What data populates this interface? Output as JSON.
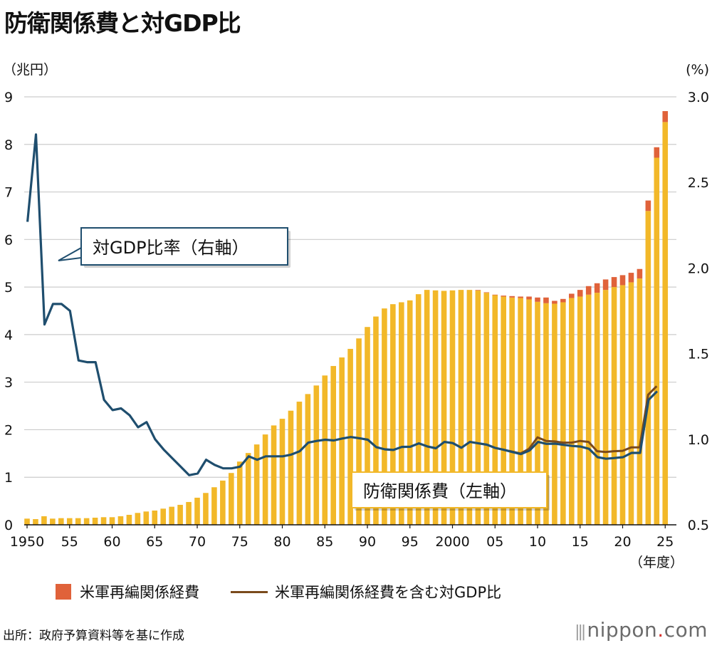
{
  "title": "防衛関係費と対GDP比",
  "left_unit": "（兆円）",
  "right_unit": "(%)",
  "x_unit": "（年度）",
  "callout_ratio": "対GDP比率（右軸）",
  "callout_spending": "防衛関係費（左軸）",
  "legend": {
    "realignment": "米軍再編関係経費",
    "ratio_incl": "米軍再編関係経費を含む対GDP比"
  },
  "source": "出所：政府予算資料等を基に作成",
  "brand": {
    "bars": "|||",
    "name": "nippon",
    "dot": ".",
    "tld": "com"
  },
  "colors": {
    "bar": "#f2b829",
    "realign": "#e0623a",
    "ratio": "#1f4e6e",
    "ratio_incl": "#7a4a1c",
    "grid": "#cccccc"
  },
  "chart_data": {
    "type": "bar+line",
    "title": "防衛関係費と対GDP比",
    "ylabel_left": "（兆円）",
    "ylabel_right": "(%)",
    "xlabel": "（年度）",
    "ylim_left": [
      0,
      9
    ],
    "ylim_right": [
      0.5,
      3.0
    ],
    "yticks_left": [
      "0",
      "1",
      "2",
      "3",
      "4",
      "5",
      "6",
      "7",
      "8",
      "9"
    ],
    "yticks_right": [
      "0.5",
      "1.0",
      "1.5",
      "2.0",
      "2.5",
      "3.0"
    ],
    "xtick_labels": [
      {
        "year": 1950,
        "label": "1950"
      },
      {
        "year": 1955,
        "label": "55"
      },
      {
        "year": 1960,
        "label": "60"
      },
      {
        "year": 1965,
        "label": "65"
      },
      {
        "year": 1970,
        "label": "70"
      },
      {
        "year": 1975,
        "label": "75"
      },
      {
        "year": 1980,
        "label": "80"
      },
      {
        "year": 1985,
        "label": "85"
      },
      {
        "year": 1990,
        "label": "90"
      },
      {
        "year": 1995,
        "label": "95"
      },
      {
        "year": 2000,
        "label": "2000"
      },
      {
        "year": 2005,
        "label": "05"
      },
      {
        "year": 2010,
        "label": "10"
      },
      {
        "year": 2015,
        "label": "15"
      },
      {
        "year": 2020,
        "label": "20"
      },
      {
        "year": 2025,
        "label": "25"
      }
    ],
    "years": [
      1950,
      1951,
      1952,
      1953,
      1954,
      1955,
      1956,
      1957,
      1958,
      1959,
      1960,
      1961,
      1962,
      1963,
      1964,
      1965,
      1966,
      1967,
      1968,
      1969,
      1970,
      1971,
      1972,
      1973,
      1974,
      1975,
      1976,
      1977,
      1978,
      1979,
      1980,
      1981,
      1982,
      1983,
      1984,
      1985,
      1986,
      1987,
      1988,
      1989,
      1990,
      1991,
      1992,
      1993,
      1994,
      1995,
      1996,
      1997,
      1998,
      1999,
      2000,
      2001,
      2002,
      2003,
      2004,
      2005,
      2006,
      2007,
      2008,
      2009,
      2010,
      2011,
      2012,
      2013,
      2014,
      2015,
      2016,
      2017,
      2018,
      2019,
      2020,
      2021,
      2022,
      2023,
      2024,
      2025
    ],
    "series": [
      {
        "name": "防衛関係費",
        "axis": "left",
        "kind": "bar",
        "values": [
          0.13,
          0.12,
          0.18,
          0.13,
          0.14,
          0.14,
          0.14,
          0.14,
          0.15,
          0.16,
          0.16,
          0.18,
          0.21,
          0.25,
          0.28,
          0.3,
          0.34,
          0.38,
          0.42,
          0.48,
          0.57,
          0.67,
          0.79,
          0.93,
          1.09,
          1.33,
          1.51,
          1.69,
          1.9,
          2.09,
          2.23,
          2.4,
          2.59,
          2.75,
          2.93,
          3.14,
          3.34,
          3.52,
          3.7,
          3.92,
          4.16,
          4.38,
          4.55,
          4.64,
          4.68,
          4.72,
          4.85,
          4.94,
          4.93,
          4.92,
          4.93,
          4.94,
          4.94,
          4.93,
          4.88,
          4.83,
          4.8,
          4.78,
          4.77,
          4.74,
          4.69,
          4.66,
          4.65,
          4.68,
          4.77,
          4.8,
          4.84,
          4.88,
          4.94,
          5.0,
          5.04,
          5.1,
          5.18,
          6.6,
          7.72,
          8.47
        ]
      },
      {
        "name": "米軍再編関係経費",
        "axis": "left",
        "kind": "bar-stack",
        "values": [
          0,
          0,
          0,
          0,
          0,
          0,
          0,
          0,
          0,
          0,
          0,
          0,
          0,
          0,
          0,
          0,
          0,
          0,
          0,
          0,
          0,
          0,
          0,
          0,
          0,
          0,
          0,
          0,
          0,
          0,
          0,
          0,
          0,
          0,
          0,
          0,
          0,
          0,
          0,
          0,
          0,
          0,
          0,
          0,
          0,
          0,
          0,
          0,
          0,
          0,
          0,
          0,
          0,
          0.01,
          0.01,
          0.01,
          0.02,
          0.03,
          0.03,
          0.06,
          0.09,
          0.12,
          0.06,
          0.07,
          0.09,
          0.14,
          0.18,
          0.2,
          0.22,
          0.21,
          0.21,
          0.2,
          0.2,
          0.22,
          0.22,
          0.23
        ]
      },
      {
        "name": "対GDP比率",
        "axis": "right",
        "kind": "line",
        "values": [
          2.27,
          2.78,
          1.67,
          1.79,
          1.79,
          1.75,
          1.46,
          1.45,
          1.45,
          1.23,
          1.17,
          1.18,
          1.14,
          1.07,
          1.1,
          1.0,
          0.94,
          0.89,
          0.84,
          0.79,
          0.8,
          0.88,
          0.85,
          0.83,
          0.83,
          0.84,
          0.9,
          0.88,
          0.9,
          0.9,
          0.9,
          0.91,
          0.93,
          0.98,
          0.99,
          0.997,
          0.993,
          1.004,
          1.013,
          1.006,
          0.997,
          0.954,
          0.941,
          0.937,
          0.955,
          0.956,
          0.976,
          0.958,
          0.947,
          0.984,
          0.977,
          0.95,
          0.984,
          0.976,
          0.968,
          0.949,
          0.938,
          0.925,
          0.913,
          0.934,
          0.984,
          0.973,
          0.974,
          0.967,
          0.961,
          0.957,
          0.944,
          0.895,
          0.886,
          0.89,
          0.895,
          0.92,
          0.92,
          1.23,
          1.28
        ]
      },
      {
        "name": "米軍再編関係経費を含む対GDP比",
        "axis": "right",
        "kind": "line",
        "start_year": 2006,
        "values": [
          0.938,
          0.928,
          0.917,
          0.944,
          1.011,
          0.99,
          0.987,
          0.98,
          0.98,
          0.99,
          0.984,
          0.93,
          0.925,
          0.93,
          0.932,
          0.952,
          0.952,
          1.26,
          1.31
        ]
      }
    ]
  }
}
